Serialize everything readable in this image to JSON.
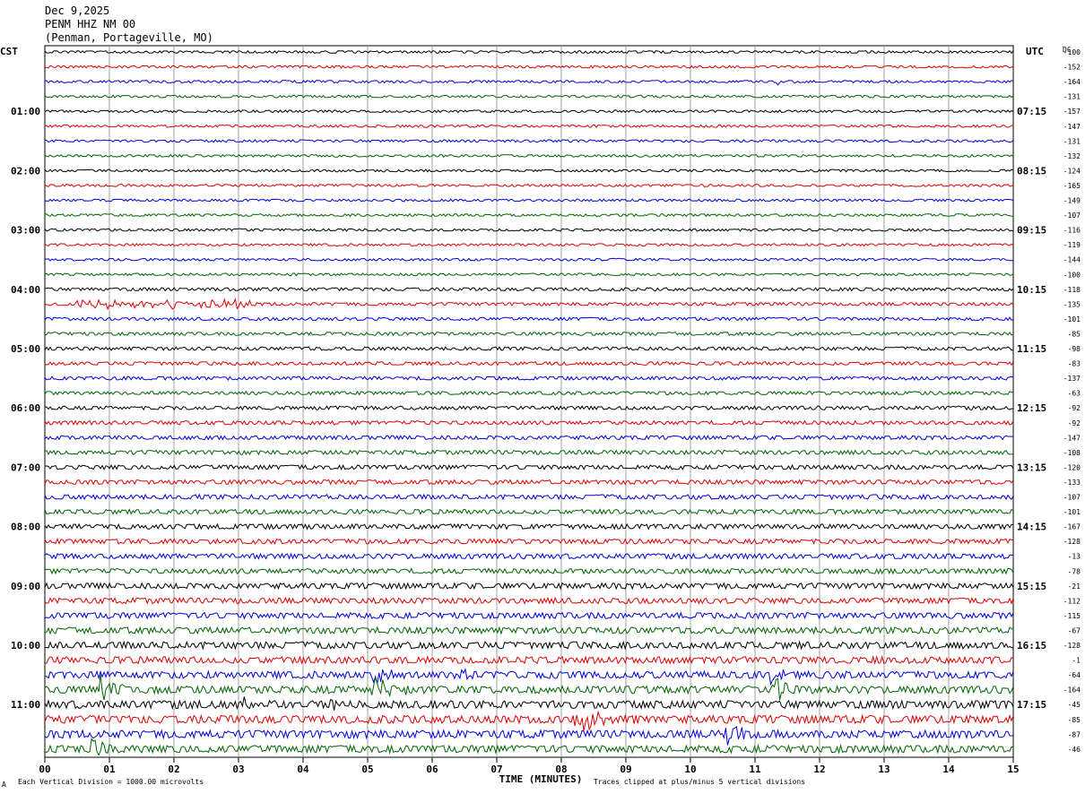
{
  "header": {
    "date": "Dec 9,2025",
    "station": "PENM HHZ NM 00",
    "location": "(Penman, Portageville, MO)"
  },
  "left_zone_label": "CST",
  "right_zone_label": "UTC",
  "dc_label": "DC",
  "footer": {
    "division": "Each Vertical Division = 1000.00 microvolts",
    "clip": "Traces clipped at plus/minus 5 vertical divisions",
    "corner_mark": "A"
  },
  "colors": {
    "cycle": [
      "#000000",
      "#dd0000",
      "#0000dd",
      "#006400"
    ],
    "grid": "#a0a0a0"
  },
  "chart_data": {
    "type": "helicorder",
    "xlabel": "TIME (MINUTES)",
    "x_ticks": [
      "00",
      "01",
      "02",
      "03",
      "04",
      "05",
      "06",
      "07",
      "08",
      "09",
      "10",
      "11",
      "12",
      "13",
      "14",
      "15"
    ],
    "xlim": [
      0,
      15
    ],
    "grid": true,
    "left_hour_labels": [
      "01:00",
      "02:00",
      "03:00",
      "04:00",
      "05:00",
      "06:00",
      "07:00",
      "08:00",
      "09:00",
      "10:00",
      "11:00"
    ],
    "right_hour_labels": [
      "07:15",
      "08:15",
      "09:15",
      "10:15",
      "11:15",
      "12:15",
      "13:15",
      "14:15",
      "15:15",
      "16:15",
      "17:15"
    ],
    "dc_offsets": [
      "-100",
      "-152",
      "-164",
      "-131",
      "-157",
      "-147",
      "-131",
      "-132",
      "-124",
      "-165",
      "-149",
      "-107",
      "-116",
      "-119",
      "-144",
      "-100",
      "-118",
      "-135",
      "-101",
      "-85",
      "-98",
      "-83",
      "-137",
      "-63",
      "-92",
      "-92",
      "-147",
      "-108",
      "-120",
      "-133",
      "-107",
      "-101",
      "-167",
      "-128",
      "-13",
      "-78",
      "-21",
      "-112",
      "-115",
      "-67",
      "-128",
      "-1",
      "-64",
      "-164",
      "-45",
      "-85",
      "-87",
      "-46"
    ],
    "noise_levels": [
      1,
      1,
      1,
      1,
      1,
      1,
      1,
      1,
      1,
      1,
      1,
      1,
      1,
      1,
      1,
      1,
      1.3,
      1.3,
      1.3,
      1.3,
      1.4,
      1.4,
      1.4,
      1.4,
      1.5,
      1.6,
      1.6,
      1.7,
      1.8,
      1.8,
      1.9,
      1.9,
      2,
      2,
      2.1,
      2.1,
      2.3,
      2.3,
      2.4,
      2.6,
      2.8,
      2.8,
      2.9,
      3,
      3.2,
      3.2,
      3.2,
      3
    ],
    "events": [
      {
        "line": 2,
        "minute": 11.4,
        "amplitude": 5,
        "duration": 0.15
      },
      {
        "line": 17,
        "minute": 0.6,
        "amplitude": 4,
        "duration": 2.6
      },
      {
        "line": 41,
        "minute": 4.2,
        "amplitude": 6,
        "duration": 0.25
      },
      {
        "line": 42,
        "minute": 5.1,
        "amplitude": 10,
        "duration": 0.35
      },
      {
        "line": 42,
        "minute": 6.35,
        "amplitude": 8,
        "duration": 0.35
      },
      {
        "line": 42,
        "minute": 11.25,
        "amplitude": 10,
        "duration": 0.4
      },
      {
        "line": 43,
        "minute": 0.9,
        "amplitude": 16,
        "duration": 0.35
      },
      {
        "line": 43,
        "minute": 5.1,
        "amplitude": 16,
        "duration": 0.45
      },
      {
        "line": 43,
        "minute": 11.3,
        "amplitude": 16,
        "duration": 0.45
      },
      {
        "line": 44,
        "minute": 3.1,
        "amplitude": 8,
        "duration": 0.2
      },
      {
        "line": 44,
        "minute": 4.4,
        "amplitude": 7,
        "duration": 0.2
      },
      {
        "line": 45,
        "minute": 8.25,
        "amplitude": 16,
        "duration": 0.5
      },
      {
        "line": 46,
        "minute": 10.5,
        "amplitude": 16,
        "duration": 0.45
      },
      {
        "line": 47,
        "minute": 0.75,
        "amplitude": 8,
        "duration": 0.35
      }
    ]
  }
}
